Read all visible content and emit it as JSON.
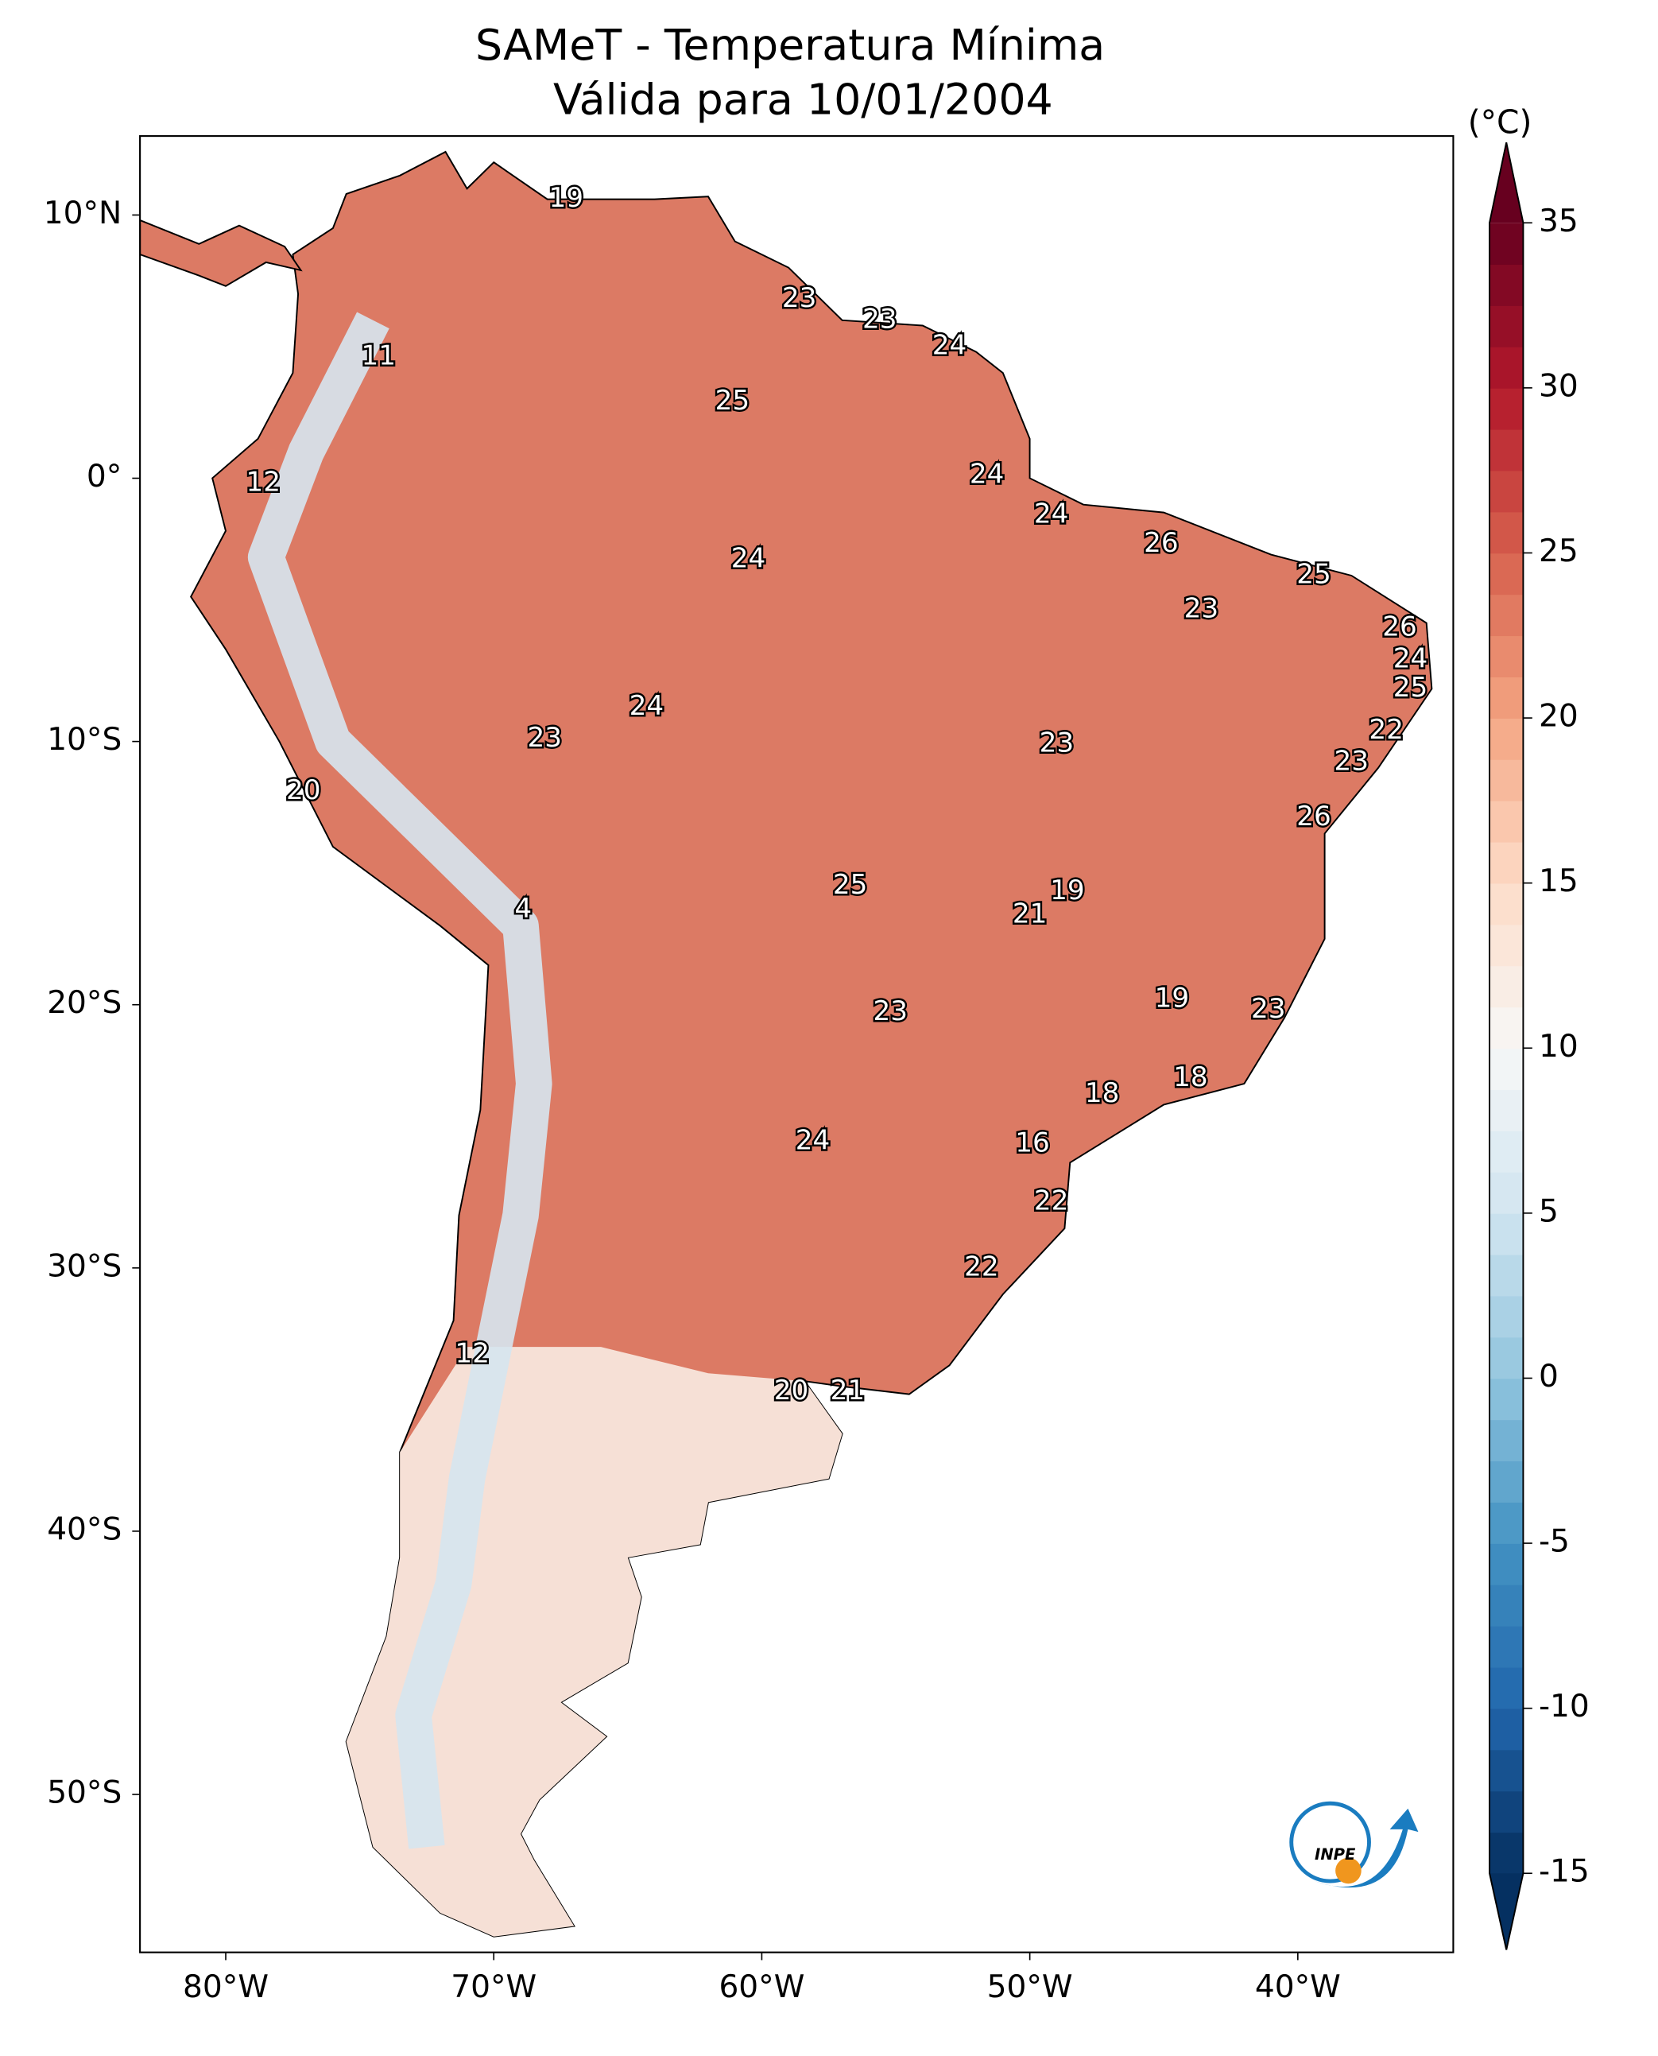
{
  "chart_data": {
    "type": "map",
    "title": "SAMeT - Temperatura Mínima",
    "subtitle": "Válida para 10/01/2004",
    "xlim": [
      -83.2,
      -34.2
    ],
    "ylim": [
      -56,
      13
    ],
    "xticks": [
      {
        "value": -80,
        "label": "80°W"
      },
      {
        "value": -70,
        "label": "70°W"
      },
      {
        "value": -60,
        "label": "60°W"
      },
      {
        "value": -50,
        "label": "50°W"
      },
      {
        "value": -40,
        "label": "40°W"
      }
    ],
    "yticks": [
      {
        "value": 10,
        "label": "10°N"
      },
      {
        "value": 0,
        "label": "0°"
      },
      {
        "value": -10,
        "label": "10°S"
      },
      {
        "value": -20,
        "label": "20°S"
      },
      {
        "value": -30,
        "label": "30°S"
      },
      {
        "value": -40,
        "label": "40°S"
      },
      {
        "value": -50,
        "label": "50°S"
      }
    ],
    "colorbar": {
      "label": "(°C)",
      "lim": [
        -15,
        35
      ],
      "ticks": [
        35,
        30,
        25,
        20,
        15,
        10,
        5,
        0,
        -5,
        -10,
        -15
      ],
      "colormap": "RdBu_r"
    },
    "logo_text": "INPE",
    "points": [
      {
        "lon": -67.3,
        "lat": 10.6,
        "value": 19
      },
      {
        "lon": -58.6,
        "lat": 6.8,
        "value": 23
      },
      {
        "lon": -55.6,
        "lat": 6.0,
        "value": 23
      },
      {
        "lon": -53.0,
        "lat": 5.0,
        "value": 24
      },
      {
        "lon": -74.3,
        "lat": 4.6,
        "value": 11
      },
      {
        "lon": -61.1,
        "lat": 2.9,
        "value": 25
      },
      {
        "lon": -78.6,
        "lat": -0.2,
        "value": 12
      },
      {
        "lon": -51.6,
        "lat": 0.1,
        "value": 24
      },
      {
        "lon": -49.2,
        "lat": -1.4,
        "value": 24
      },
      {
        "lon": -45.1,
        "lat": -2.5,
        "value": 26
      },
      {
        "lon": -60.5,
        "lat": -3.1,
        "value": 24
      },
      {
        "lon": -39.4,
        "lat": -3.7,
        "value": 25
      },
      {
        "lon": -43.6,
        "lat": -5.0,
        "value": 23
      },
      {
        "lon": -36.2,
        "lat": -5.7,
        "value": 26
      },
      {
        "lon": -35.8,
        "lat": -6.9,
        "value": 24
      },
      {
        "lon": -35.8,
        "lat": -8.0,
        "value": 25
      },
      {
        "lon": -64.3,
        "lat": -8.7,
        "value": 24
      },
      {
        "lon": -36.7,
        "lat": -9.6,
        "value": 22
      },
      {
        "lon": -68.1,
        "lat": -9.9,
        "value": 23
      },
      {
        "lon": -49.0,
        "lat": -10.1,
        "value": 23
      },
      {
        "lon": -38.0,
        "lat": -10.8,
        "value": 23
      },
      {
        "lon": -77.1,
        "lat": -11.9,
        "value": 20
      },
      {
        "lon": -39.4,
        "lat": -12.9,
        "value": 26
      },
      {
        "lon": -56.7,
        "lat": -15.5,
        "value": 25
      },
      {
        "lon": -48.6,
        "lat": -15.7,
        "value": 19
      },
      {
        "lon": -68.9,
        "lat": -16.4,
        "value": 4
      },
      {
        "lon": -50.0,
        "lat": -16.6,
        "value": 21
      },
      {
        "lon": -44.7,
        "lat": -19.8,
        "value": 19
      },
      {
        "lon": -55.2,
        "lat": -20.3,
        "value": 23
      },
      {
        "lon": -41.1,
        "lat": -20.2,
        "value": 23
      },
      {
        "lon": -44.0,
        "lat": -22.8,
        "value": 18
      },
      {
        "lon": -47.3,
        "lat": -23.4,
        "value": 18
      },
      {
        "lon": -58.1,
        "lat": -25.2,
        "value": 24
      },
      {
        "lon": -49.9,
        "lat": -25.3,
        "value": 16
      },
      {
        "lon": -49.2,
        "lat": -27.5,
        "value": 22
      },
      {
        "lon": -51.8,
        "lat": -30.0,
        "value": 22
      },
      {
        "lon": -70.8,
        "lat": -33.3,
        "value": 12
      },
      {
        "lon": -58.9,
        "lat": -34.7,
        "value": 20
      },
      {
        "lon": -56.8,
        "lat": -34.7,
        "value": 21
      }
    ]
  }
}
